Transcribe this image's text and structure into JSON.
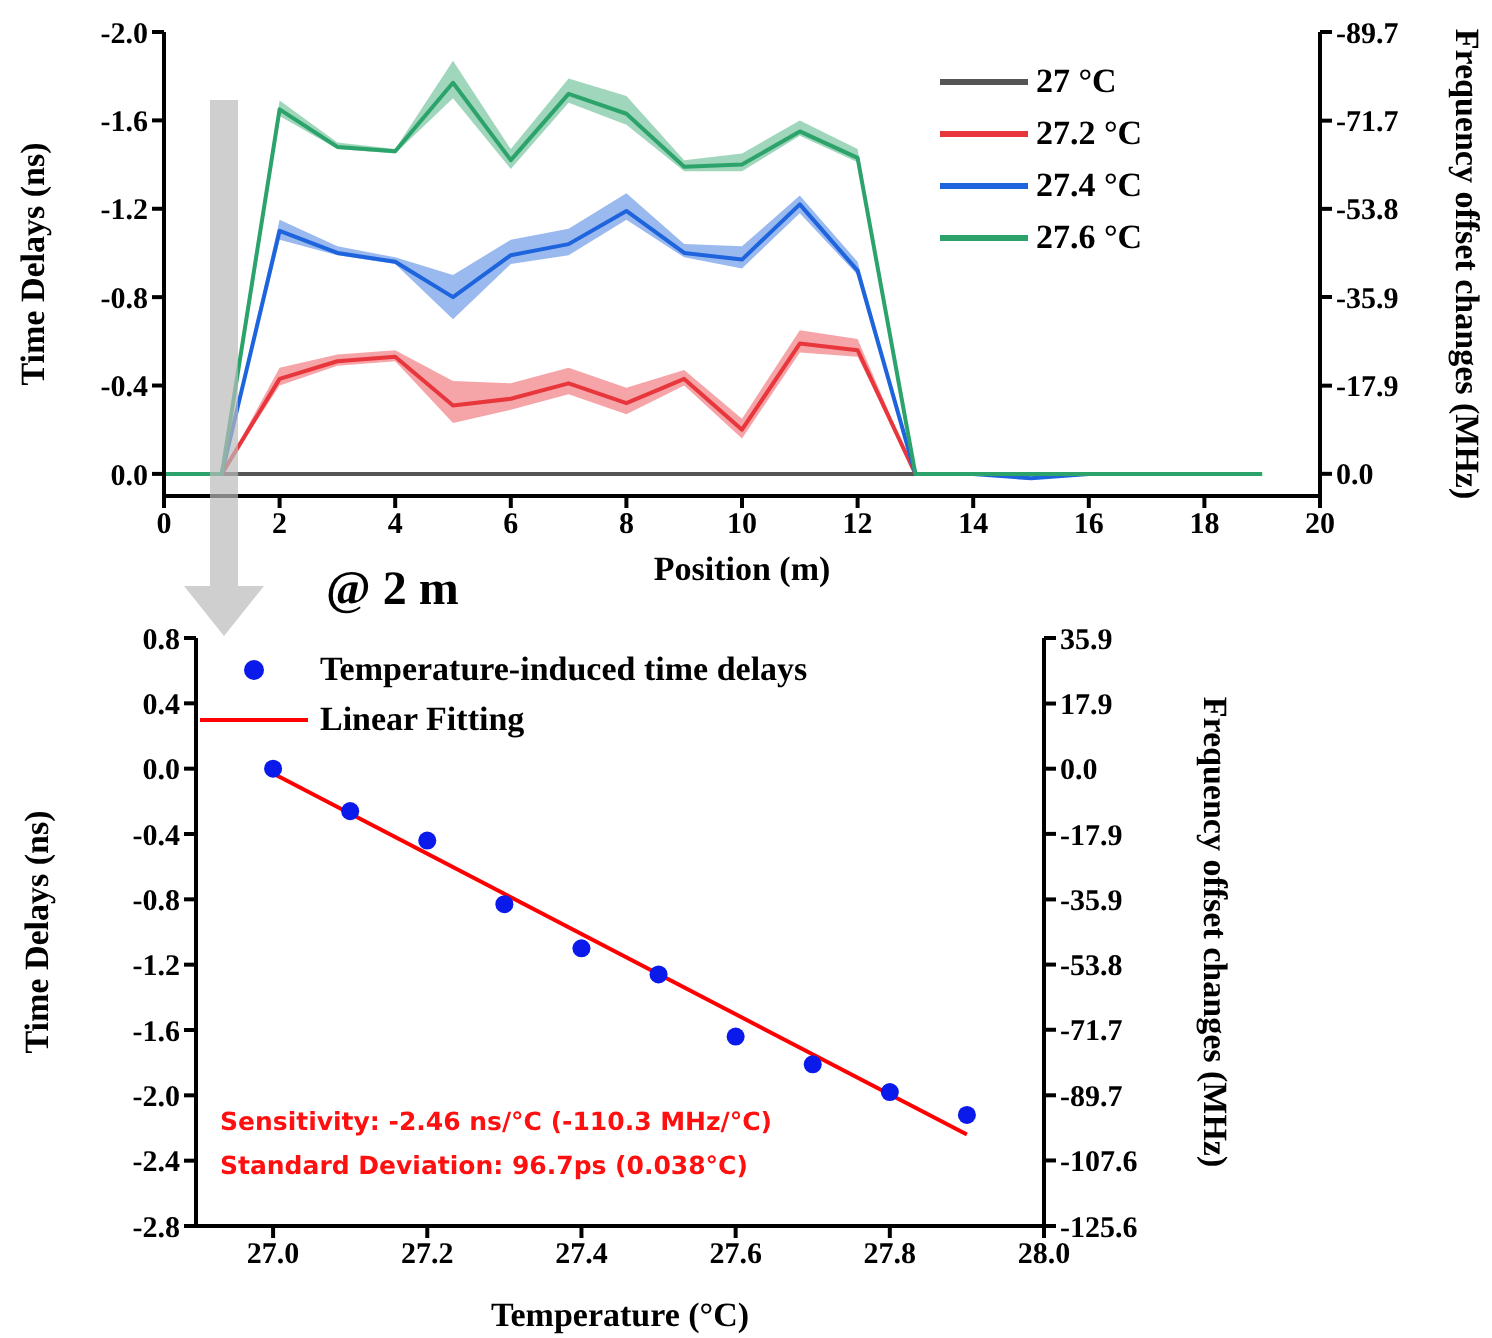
{
  "chart_data": [
    {
      "type": "line",
      "xlabel": "Position (m)",
      "ylabel": "Time Delays (ns)",
      "y2label": "Frequency offset changes (MHz)",
      "x": [
        0,
        1,
        2,
        3,
        4,
        5,
        6,
        7,
        8,
        9,
        10,
        11,
        12,
        13,
        14,
        15,
        16,
        17,
        18,
        19
      ],
      "xlim": [
        0,
        20
      ],
      "xticks": [
        0,
        2,
        4,
        6,
        8,
        10,
        12,
        14,
        16,
        18,
        20
      ],
      "ylim": [
        0.1,
        -2.0
      ],
      "yticks": [
        {
          "value": -2.0,
          "label": "-2.0"
        },
        {
          "value": -1.6,
          "label": "-1.6"
        },
        {
          "value": -1.2,
          "label": "-1.2"
        },
        {
          "value": -0.8,
          "label": "-0.8"
        },
        {
          "value": -0.4,
          "label": "-0.4"
        },
        {
          "value": 0,
          "label": "0.0"
        }
      ],
      "y2lim": [
        4.5,
        -89.7
      ],
      "y2ticks": [
        -89.7,
        -71.7,
        -53.8,
        -35.9,
        -17.9,
        {
          "value": 0,
          "label": "0.0"
        }
      ],
      "legend": "top right",
      "marker": "none",
      "line_style": "solid",
      "series": [
        {
          "name": "27 °C",
          "color": "#555555",
          "values": [
            0,
            0,
            0,
            0,
            0,
            0,
            0,
            0,
            0,
            0,
            0,
            0,
            0,
            0,
            null,
            null,
            null,
            null,
            null,
            null
          ]
        },
        {
          "name": "27.2 °C",
          "color": "#e8363d",
          "values": [
            0,
            0,
            -0.43,
            -0.51,
            -0.53,
            -0.31,
            -0.34,
            -0.41,
            -0.32,
            -0.43,
            -0.2,
            -0.59,
            -0.56,
            0,
            0,
            null,
            null,
            null,
            null,
            null
          ],
          "lower": [
            0,
            0,
            -0.4,
            -0.49,
            -0.51,
            -0.23,
            -0.29,
            -0.36,
            -0.27,
            -0.4,
            -0.16,
            -0.55,
            -0.53,
            0,
            0,
            null,
            null,
            null,
            null,
            null
          ],
          "upper": [
            0,
            0,
            -0.48,
            -0.54,
            -0.56,
            -0.42,
            -0.41,
            -0.48,
            -0.39,
            -0.47,
            -0.25,
            -0.65,
            -0.61,
            0,
            0,
            null,
            null,
            null,
            null,
            null
          ]
        },
        {
          "name": "27.4 °C",
          "color": "#1e64dc",
          "values": [
            0,
            0,
            -1.1,
            -1.0,
            -0.96,
            -0.8,
            -0.99,
            -1.04,
            -1.19,
            -1.0,
            -0.97,
            -1.22,
            -0.92,
            0,
            0,
            0.02,
            0,
            0,
            null,
            null
          ],
          "lower": [
            0,
            0,
            -1.06,
            -0.99,
            -0.95,
            -0.7,
            -0.95,
            -0.99,
            -1.15,
            -0.98,
            -0.93,
            -1.18,
            -0.9,
            0,
            0,
            0.02,
            0,
            0,
            null,
            null
          ],
          "upper": [
            0,
            0,
            -1.15,
            -1.03,
            -0.98,
            -0.9,
            -1.06,
            -1.11,
            -1.27,
            -1.04,
            -1.03,
            -1.26,
            -0.96,
            0,
            0,
            0.02,
            0,
            0,
            null,
            null
          ]
        },
        {
          "name": "27.6 °C",
          "color": "#2ca36b",
          "values": [
            0,
            0,
            -1.65,
            -1.48,
            -1.46,
            -1.77,
            -1.42,
            -1.72,
            -1.63,
            -1.39,
            -1.4,
            -1.55,
            -1.43,
            0,
            0,
            0,
            0,
            0,
            0,
            0
          ],
          "lower": [
            0,
            0,
            -1.62,
            -1.47,
            -1.45,
            -1.7,
            -1.38,
            -1.68,
            -1.58,
            -1.37,
            -1.37,
            -1.53,
            -1.41,
            0,
            0,
            0,
            0,
            0,
            0,
            0
          ],
          "upper": [
            0,
            0,
            -1.69,
            -1.5,
            -1.47,
            -1.87,
            -1.47,
            -1.79,
            -1.71,
            -1.42,
            -1.45,
            -1.6,
            -1.47,
            0,
            0,
            0,
            0,
            0,
            0,
            0
          ]
        }
      ]
    },
    {
      "type": "scatter",
      "title": "@ 2 m",
      "xlabel": "Temperature (°C)",
      "ylabel": "Time Delays (ns)",
      "y2label": "Frequency offset changes (MHz)",
      "xlim": [
        26.9,
        28.0
      ],
      "xticks": [
        {
          "value": 27,
          "label": "27.0"
        },
        27.2,
        27.4,
        27.6,
        27.8,
        {
          "value": 28,
          "label": "28.0"
        }
      ],
      "ylim": [
        -2.8,
        0.8
      ],
      "yticks": [
        0.8,
        0.4,
        {
          "value": 0,
          "label": "0.0"
        },
        -0.4,
        -0.8,
        -1.2,
        -1.6,
        {
          "value": -2,
          "label": "-2.0"
        },
        -2.4,
        -2.8
      ],
      "y2lim": [
        -125.6,
        35.9
      ],
      "y2ticks": [
        35.9,
        17.9,
        {
          "value": 0,
          "label": "0.0"
        },
        -17.9,
        -35.9,
        -53.8,
        -71.7,
        -89.7,
        -107.6,
        -125.6
      ],
      "legend": "top left",
      "annotations": [
        "Sensitivity: -2.46 ns/°C  (-110.3 MHz/°C)",
        "Standard Deviation: 96.7ps (0.038°C)"
      ],
      "series": [
        {
          "name": "Temperature-induced time delays",
          "type": "scatter",
          "marker": "circle",
          "color": "#0a1aeb",
          "x": [
            27.0,
            27.1,
            27.2,
            27.3,
            27.4,
            27.5,
            27.6,
            27.7,
            27.8,
            27.9
          ],
          "values": [
            0,
            -0.26,
            -0.44,
            -0.83,
            -1.1,
            -1.26,
            -1.64,
            -1.81,
            -1.98,
            -2.12
          ]
        },
        {
          "name": "Linear Fitting",
          "type": "line",
          "color": "#ff0000",
          "line_style": "solid",
          "x": [
            27.0,
            27.9
          ],
          "values": [
            -0.03,
            -2.24
          ]
        }
      ]
    }
  ]
}
